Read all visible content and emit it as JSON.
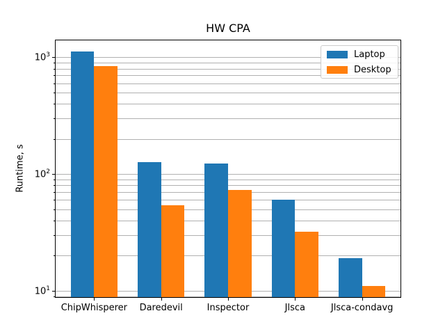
{
  "chart_data": {
    "type": "bar",
    "title": "HW CPA",
    "xlabel": "",
    "ylabel": "Runtime, s",
    "yscale": "log",
    "ylim": [
      8.7,
      1416
    ],
    "ytick_exponents": [
      1,
      2,
      3
    ],
    "grid": "horizontal major and minor gridlines",
    "grid_color": "#b0b0b0",
    "legend_position": "upper right",
    "categories": [
      "ChipWhisperer",
      "Daredevil",
      "Inspector",
      "Jlsca",
      "Jlsca-condavg"
    ],
    "series": [
      {
        "name": "Laptop",
        "color": "#1f77b4",
        "values": [
          1120,
          127,
          123,
          60,
          19
        ]
      },
      {
        "name": "Desktop",
        "color": "#ff7f0e",
        "values": [
          840,
          54,
          73,
          32,
          11
        ]
      }
    ]
  }
}
